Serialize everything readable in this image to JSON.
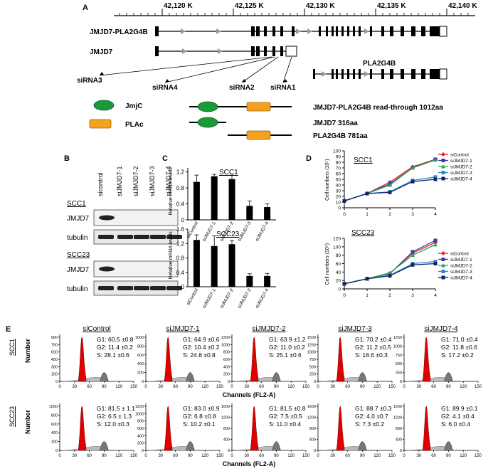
{
  "panel_a": {
    "letter": "A",
    "axis_ticks": [
      "42,120 K",
      "42,125 K",
      "42,130 K",
      "42,135 K",
      "42,140 K"
    ],
    "track_labels": [
      "JMJD7-PLA2G4B",
      "JMJD7",
      "PLA2G4B"
    ],
    "sirna_labels": [
      "siRNA3",
      "siRNA4",
      "siRNA2",
      "siRNA1"
    ],
    "domains": [
      "JmjC",
      "PLAc"
    ],
    "domain_colors": {
      "jmjc": "#1a9a3a",
      "plac": "#f4a21e"
    },
    "protein_labels": [
      "JMJD7-PLA2G4B read-through 1012aa",
      "JMJD7  316aa",
      "PLA2G4B  781aa"
    ]
  },
  "panel_b": {
    "letter": "B",
    "lanes": [
      "sicontrol",
      "siJMJD7-1",
      "siJMJD7-2",
      "siJMJD7-3",
      "siJMJD7-4"
    ],
    "cell_lines": [
      "SCC1",
      "SCC23"
    ],
    "bands": [
      "JMJD7",
      "tubulin"
    ]
  },
  "panel_c": {
    "letter": "C",
    "ylabel": "Relative mRNA levels",
    "categories": [
      "siControl",
      "siJMJD7-1",
      "siJMJD7-2",
      "siJMJD7-3",
      "siJMJD7-4"
    ],
    "charts": [
      {
        "title": "SCC1",
        "ticks": [
          "0",
          "0.4",
          "0.8",
          "1.2"
        ]
      },
      {
        "title": "SCC23",
        "ticks": [
          "0",
          "0.4",
          "0.8",
          "1.2",
          "1.6"
        ]
      }
    ]
  },
  "panel_d": {
    "letter": "D",
    "ylabel": "Cell numbers (10⁵)",
    "legend": [
      "siControl",
      "siJMJD7-1",
      "siJMJD7-2",
      "siJMJD7-3",
      "siJMJD7-4"
    ],
    "series_colors": [
      "#e8202a",
      "#3a3aa8",
      "#2aa84a",
      "#2a8ad0",
      "#10206a"
    ],
    "x_ticks": [
      "0",
      "1",
      "2",
      "3",
      "4"
    ],
    "charts": [
      {
        "title": "SCC1",
        "ticks": [
          "0",
          "10",
          "20",
          "30",
          "40",
          "50",
          "60",
          "70",
          "80",
          "90",
          "100"
        ]
      },
      {
        "title": "SCC23",
        "ticks": [
          "0",
          "20",
          "40",
          "60",
          "80",
          "100",
          "120"
        ]
      }
    ]
  },
  "panel_e": {
    "letter": "E",
    "row_labels": [
      "SCC1",
      "SCC23"
    ],
    "ylabel": "Number",
    "xlabel": "Channels (FL2-A)",
    "x_ticks": [
      "0",
      "30",
      "60",
      "90",
      "120",
      "150"
    ],
    "titles": [
      "siControl",
      "siJMJD7-1",
      "siJMJD7-2",
      "siJMJD7-3",
      "siJMJD7-4"
    ],
    "row1_yticks": [
      [
        "0",
        "150",
        "300",
        "450",
        "600",
        "750",
        "900"
      ],
      [
        "0",
        "200",
        "400",
        "600",
        "800",
        "1000"
      ],
      [
        "0",
        "200",
        "400",
        "600",
        "800",
        "1000",
        "1200"
      ],
      [
        "0",
        "250",
        "500",
        "750",
        "1000",
        "1250",
        "1500"
      ],
      [
        "0",
        "250",
        "500",
        "750",
        "1000",
        "1250"
      ]
    ],
    "row2_yticks": [
      [
        "0",
        "200",
        "400",
        "600",
        "800",
        "1000"
      ],
      [
        "0",
        "200",
        "400",
        "600",
        "800",
        "1000",
        "1200"
      ],
      [
        "0",
        "400",
        "800",
        "1200",
        "1600"
      ],
      [
        "0",
        "400",
        "800",
        "1200",
        "1600"
      ],
      [
        "0",
        "400",
        "800",
        "1200",
        "1600"
      ]
    ],
    "stats_row1": [
      [
        "G1: 60.5 ±0.8",
        "G2: 11.4 ±0.2",
        "S: 28.1 ±0.6"
      ],
      [
        "G1: 64.9 ±0.6",
        "G2: 10.4 ±0.2",
        "S: 24.8 ±0.8"
      ],
      [
        "G1: 63.9 ±1.2",
        "G2: 11.0 ±0.2",
        "S: 25.1 ±0.6"
      ],
      [
        "G1: 70.2 ±0.4",
        "G2: 11.2 ±0.5",
        "S: 18.6 ±0.3"
      ],
      [
        "G1: 71.0 ±0.4",
        "G2: 11.8 ±0.6",
        "S: 17.2 ±0.2"
      ]
    ],
    "stats_row2": [
      [
        "G1: 81.5 ± 1.1",
        "G2: 6.5 ± 1.3",
        "S: 12.0 ±0.3"
      ],
      [
        "G1: 83.0 ±0.9",
        "G2: 6.8 ±0.8",
        "S: 10.2 ±0.1"
      ],
      [
        "G1: 81.5 ±0.8",
        "G2: 7.5 ±0.5",
        "S: 11.0 ±0.4"
      ],
      [
        "G1: 88.7 ±0.3",
        "G2: 4.0 ±0.7",
        "S: 7.3 ±0.2"
      ],
      [
        "G1: 89.9 ±0.1",
        "G2: 4.1 ±0.4",
        "S: 6.0 ±0.4"
      ]
    ]
  },
  "chart_data": [
    {
      "type": "bar",
      "title": "SCC1",
      "ylabel": "Relative mRNA levels",
      "categories": [
        "siControl",
        "siJMJD7-1",
        "siJMJD7-2",
        "siJMJD7-3",
        "siJMJD7-4"
      ],
      "values": [
        0.95,
        1.09,
        1.02,
        0.35,
        0.32
      ],
      "errors": [
        0.17,
        0.05,
        0.1,
        0.12,
        0.08
      ],
      "ylim": [
        0,
        1.3
      ]
    },
    {
      "type": "bar",
      "title": "SCC23",
      "ylabel": "Relative mRNA levels",
      "categories": [
        "siControl",
        "siJMJD7-1",
        "siJMJD7-2",
        "siJMJD7-3",
        "siJMJD7-4"
      ],
      "values": [
        1.3,
        1.13,
        1.18,
        0.3,
        0.3
      ],
      "errors": [
        0.14,
        0.28,
        0.1,
        0.06,
        0.07
      ],
      "ylim": [
        0,
        1.6
      ]
    },
    {
      "type": "line",
      "title": "SCC1",
      "ylabel": "Cell numbers (10⁵)",
      "x": [
        0,
        1,
        2,
        3,
        4
      ],
      "ylim": [
        0,
        100
      ],
      "series": [
        {
          "name": "siControl",
          "values": [
            12,
            25,
            45,
            72,
            85
          ]
        },
        {
          "name": "siJMJD7-1",
          "values": [
            12,
            25,
            42,
            70,
            85
          ]
        },
        {
          "name": "siJMJD7-2",
          "values": [
            12,
            25,
            40,
            70,
            84
          ]
        },
        {
          "name": "siJMJD7-3",
          "values": [
            12,
            25,
            28,
            48,
            54
          ]
        },
        {
          "name": "siJMJD7-4",
          "values": [
            12,
            25,
            27,
            46,
            50
          ]
        }
      ]
    },
    {
      "type": "line",
      "title": "SCC23",
      "ylabel": "Cell numbers (10⁵)",
      "x": [
        0,
        1,
        2,
        3,
        4
      ],
      "ylim": [
        0,
        120
      ],
      "series": [
        {
          "name": "siControl",
          "values": [
            12,
            24,
            37,
            85,
            110
          ]
        },
        {
          "name": "siJMJD7-1",
          "values": [
            12,
            24,
            36,
            88,
            115
          ]
        },
        {
          "name": "siJMJD7-2",
          "values": [
            12,
            24,
            38,
            80,
            105
          ]
        },
        {
          "name": "siJMJD7-3",
          "values": [
            12,
            24,
            32,
            60,
            65
          ]
        },
        {
          "name": "siJMJD7-4",
          "values": [
            12,
            24,
            31,
            57,
            60
          ]
        }
      ]
    }
  ]
}
